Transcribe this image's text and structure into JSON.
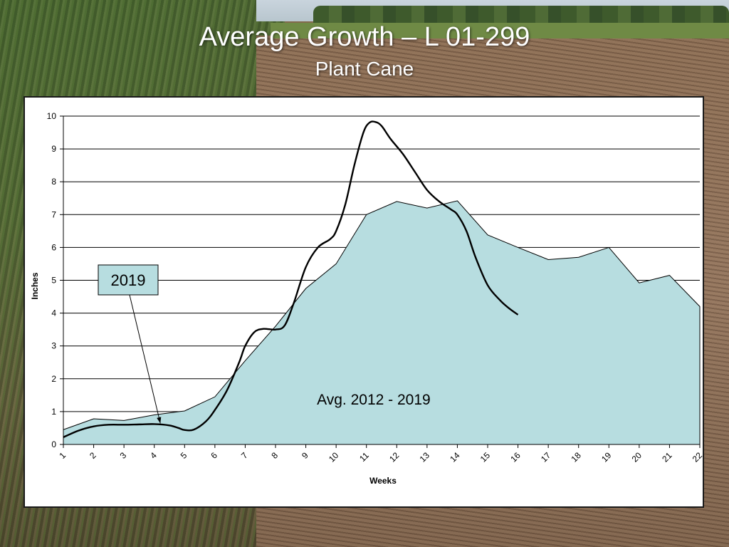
{
  "header": {
    "title": "Average Growth – L 01-299",
    "subtitle": "Plant Cane"
  },
  "chart_data": {
    "type": "area",
    "xlabel": "Weeks",
    "ylabel": "Inches",
    "ylim": [
      0,
      10
    ],
    "yticks": [
      0,
      1,
      2,
      3,
      4,
      5,
      6,
      7,
      8,
      9,
      10
    ],
    "x": [
      1,
      2,
      3,
      4,
      5,
      6,
      7,
      8,
      9,
      10,
      11,
      12,
      13,
      14,
      15,
      16,
      17,
      18,
      19,
      20,
      21,
      22
    ],
    "grid": "horizontal",
    "series": [
      {
        "name": "Avg. 2012 - 2019",
        "kind": "area",
        "color": "#b7dde0",
        "x": [
          1,
          2,
          3,
          4,
          5,
          6,
          7,
          8,
          9,
          10,
          11,
          12,
          13,
          14,
          15,
          16,
          17,
          18,
          19,
          20,
          21,
          22
        ],
        "values": [
          0.45,
          0.78,
          0.73,
          0.9,
          1.02,
          1.45,
          2.55,
          3.6,
          4.75,
          5.5,
          7.0,
          7.4,
          7.2,
          7.42,
          6.38,
          6.0,
          5.63,
          5.7,
          6.0,
          4.92,
          5.15,
          4.2
        ]
      },
      {
        "name": "2019",
        "kind": "line",
        "color": "#000000",
        "x": [
          1,
          1.5,
          2,
          2.5,
          3,
          3.5,
          4,
          4.5,
          4.8,
          5,
          5.3,
          5.7,
          6,
          6.4,
          6.8,
          7,
          7.3,
          7.6,
          8,
          8.3,
          8.6,
          9,
          9.4,
          9.8,
          10,
          10.3,
          10.6,
          10.9,
          11.1,
          11.3,
          11.5,
          11.8,
          12.2,
          12.6,
          13,
          13.4,
          13.8,
          14,
          14.3,
          14.6,
          15,
          15.4,
          15.7,
          16
        ],
        "values": [
          0.22,
          0.42,
          0.55,
          0.6,
          0.6,
          0.61,
          0.62,
          0.58,
          0.5,
          0.44,
          0.45,
          0.7,
          1.05,
          1.65,
          2.5,
          3.0,
          3.42,
          3.52,
          3.5,
          3.62,
          4.3,
          5.4,
          6.0,
          6.25,
          6.5,
          7.3,
          8.5,
          9.5,
          9.8,
          9.82,
          9.7,
          9.3,
          8.85,
          8.3,
          7.75,
          7.4,
          7.15,
          7.0,
          6.5,
          5.7,
          4.85,
          4.4,
          4.15,
          3.95
        ]
      }
    ],
    "annotations": [
      {
        "text": "2019",
        "kind": "callout-box",
        "points_to": [
          4.2,
          0.6
        ]
      },
      {
        "text": "Avg. 2012 - 2019",
        "kind": "label",
        "at": [
          10.3,
          1.3
        ]
      }
    ]
  }
}
